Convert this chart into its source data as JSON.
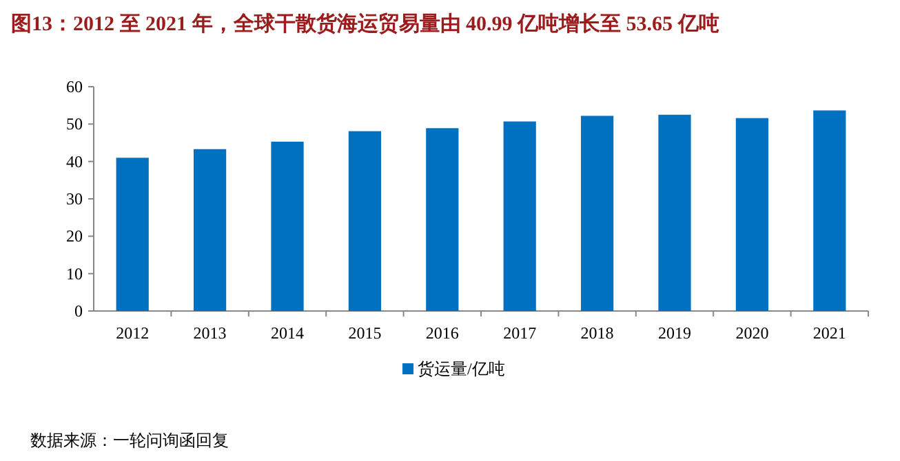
{
  "chart_data": {
    "type": "bar",
    "title": "图13：2012 至 2021 年，全球干散货海运贸易量由 40.99 亿吨增长至 53.65 亿吨",
    "categories": [
      "2012",
      "2013",
      "2014",
      "2015",
      "2016",
      "2017",
      "2018",
      "2019",
      "2020",
      "2021"
    ],
    "series": [
      {
        "name": "货运量/亿吨",
        "color": "#0070c0",
        "values": [
          40.99,
          43.3,
          45.3,
          48.1,
          48.9,
          50.7,
          52.2,
          52.5,
          51.6,
          53.65
        ]
      }
    ],
    "ylim": [
      0,
      60
    ],
    "yticks": [
      0,
      10,
      20,
      30,
      40,
      50,
      60
    ],
    "grid": false,
    "legend": "bottom",
    "annotations": [
      "数据来源：一轮问询函回复"
    ]
  }
}
